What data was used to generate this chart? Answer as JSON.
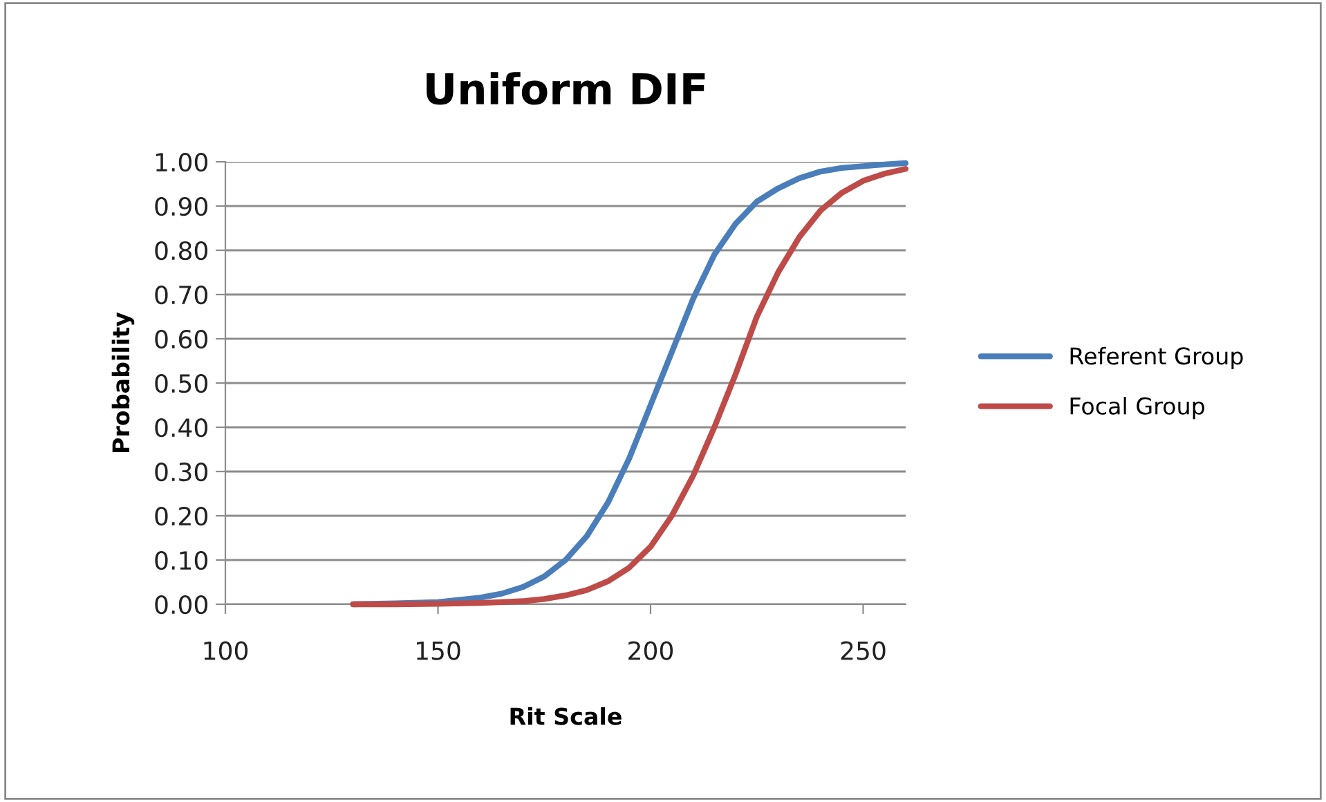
{
  "chart_data": {
    "type": "line",
    "title": "Uniform DIF",
    "xlabel": "Rit Scale",
    "ylabel": "Probability",
    "x": [
      130,
      140,
      150,
      160,
      165,
      170,
      175,
      180,
      185,
      190,
      195,
      200,
      205,
      210,
      215,
      220,
      225,
      230,
      235,
      240,
      245,
      250,
      255,
      260
    ],
    "series": [
      {
        "name": "Referent Group",
        "color": "#4a7ebb",
        "values": [
          0.0,
          0.002,
          0.005,
          0.015,
          0.024,
          0.039,
          0.063,
          0.1,
          0.154,
          0.23,
          0.33,
          0.45,
          0.57,
          0.69,
          0.79,
          0.86,
          0.91,
          0.94,
          0.963,
          0.978,
          0.986,
          0.99,
          0.994,
          0.997
        ]
      },
      {
        "name": "Focal Group",
        "color": "#be4b48",
        "values": [
          0.0,
          0.0,
          0.001,
          0.003,
          0.005,
          0.007,
          0.012,
          0.02,
          0.032,
          0.052,
          0.083,
          0.13,
          0.2,
          0.29,
          0.4,
          0.52,
          0.65,
          0.75,
          0.83,
          0.89,
          0.93,
          0.957,
          0.973,
          0.984
        ]
      }
    ],
    "xlim": [
      100,
      260
    ],
    "xticks": [
      100,
      150,
      200,
      250
    ],
    "ylim": [
      0,
      1
    ],
    "yticks": [
      {
        "value": 0,
        "label": "0.00"
      },
      {
        "value": 0.1,
        "label": "0.10"
      },
      {
        "value": 0.2,
        "label": "0.20"
      },
      {
        "value": 0.3,
        "label": "0.30"
      },
      {
        "value": 0.4,
        "label": "0.40"
      },
      {
        "value": 0.5,
        "label": "0.50"
      },
      {
        "value": 0.6,
        "label": "0.60"
      },
      {
        "value": 0.7,
        "label": "0.70"
      },
      {
        "value": 0.8,
        "label": "0.80"
      },
      {
        "value": 0.9,
        "label": "0.90"
      },
      {
        "value": 1,
        "label": "1.00"
      }
    ],
    "grid": "y",
    "legend": "right",
    "marker": "none",
    "line_style": "solid"
  }
}
